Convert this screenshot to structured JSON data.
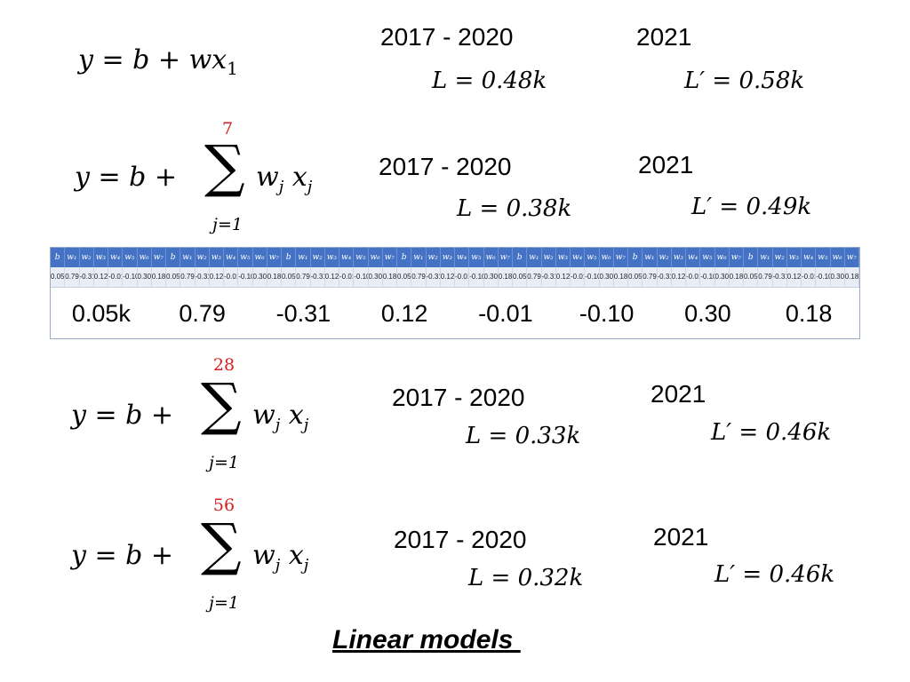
{
  "models": [
    {
      "period_label": "2017 - 2020",
      "loss": "L = 0.48k",
      "year_label": "2021",
      "loss_prime": "L′ = 0.58k"
    },
    {
      "sum_upper": "7",
      "period_label": "2017 - 2020",
      "loss": "L = 0.38k",
      "year_label": "2021",
      "loss_prime": "L′ = 0.49k"
    },
    {
      "sum_upper": "28",
      "period_label": "2017 - 2020",
      "loss": "L = 0.33k",
      "year_label": "2021",
      "loss_prime": "L′ = 0.46k"
    },
    {
      "sum_upper": "56",
      "period_label": "2017 - 2020",
      "loss": "L = 0.32k",
      "year_label": "2021",
      "loss_prime": "L′ = 0.46k"
    }
  ],
  "eq_simple": {
    "lhs": "y = b + wx",
    "sub": "1"
  },
  "eq_sum": {
    "lhs": "y = b + ",
    "sigma": "∑",
    "lower": "j=1",
    "term": "w",
    "term_sub": "j",
    "x": " x",
    "x_sub": "j"
  },
  "weights_table": {
    "header_cells": [
      "b",
      "w₁",
      "w₂",
      "w₃",
      "w₄",
      "w₅",
      "w₆",
      "w₇"
    ],
    "values": [
      "0.05k",
      "0.79",
      "-0.31",
      "0.12",
      "-0.01",
      "-0.10",
      "0.30",
      "0.18"
    ]
  },
  "caption": "Linear models ",
  "colors": {
    "accent_red": "#d42020",
    "table_header": "#4472c4"
  }
}
